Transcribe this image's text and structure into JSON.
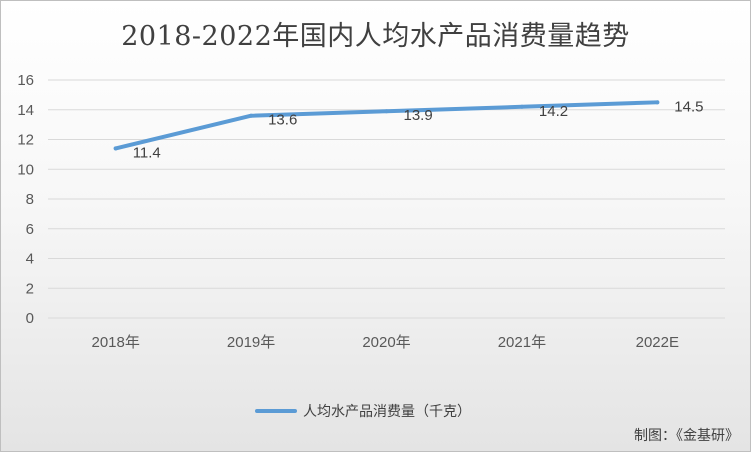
{
  "chart_data": {
    "type": "line",
    "title": "2018-2022年国内人均水产品消费量趋势",
    "categories": [
      "2018年",
      "2019年",
      "2020年",
      "2021年",
      "2022E"
    ],
    "series": [
      {
        "name": "人均水产品消费量（千克）",
        "values": [
          11.4,
          13.6,
          13.9,
          14.2,
          14.5
        ],
        "color": "#5b9bd5"
      }
    ],
    "ylim": [
      0,
      16
    ],
    "yticks": [
      0,
      2,
      4,
      6,
      8,
      10,
      12,
      14,
      16
    ],
    "grid": true,
    "legend": "bottom"
  },
  "credit": "制图：《金基研》"
}
